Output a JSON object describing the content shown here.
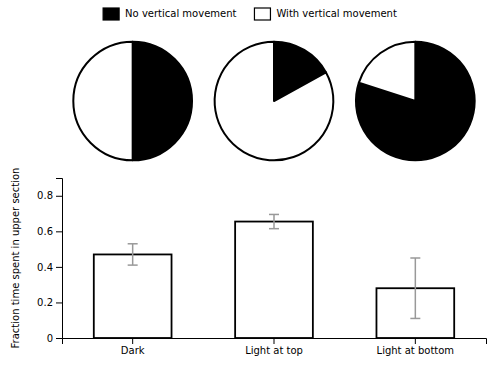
{
  "chart_data": [
    {
      "type": "bar",
      "categories": [
        "Dark",
        "Light at top",
        "Light at bottom"
      ],
      "values": [
        0.47,
        0.655,
        0.28
      ],
      "errors": [
        0.06,
        0.04,
        0.17
      ],
      "color": "#ffffff",
      "ylabel": "Fraction time spent in upper section",
      "ylim": [
        0,
        0.9
      ],
      "yticks": [
        0,
        0.2,
        0.4,
        0.6,
        0.8
      ]
    },
    {
      "type": "pie",
      "legend": "top",
      "series": [
        {
          "name": "No vertical movement",
          "color": "#000000",
          "values": [
            0.5,
            0.17,
            0.8
          ]
        },
        {
          "name": "With vertical movement",
          "color": "#ffffff",
          "values": [
            0.5,
            0.83,
            0.2
          ]
        }
      ]
    }
  ]
}
